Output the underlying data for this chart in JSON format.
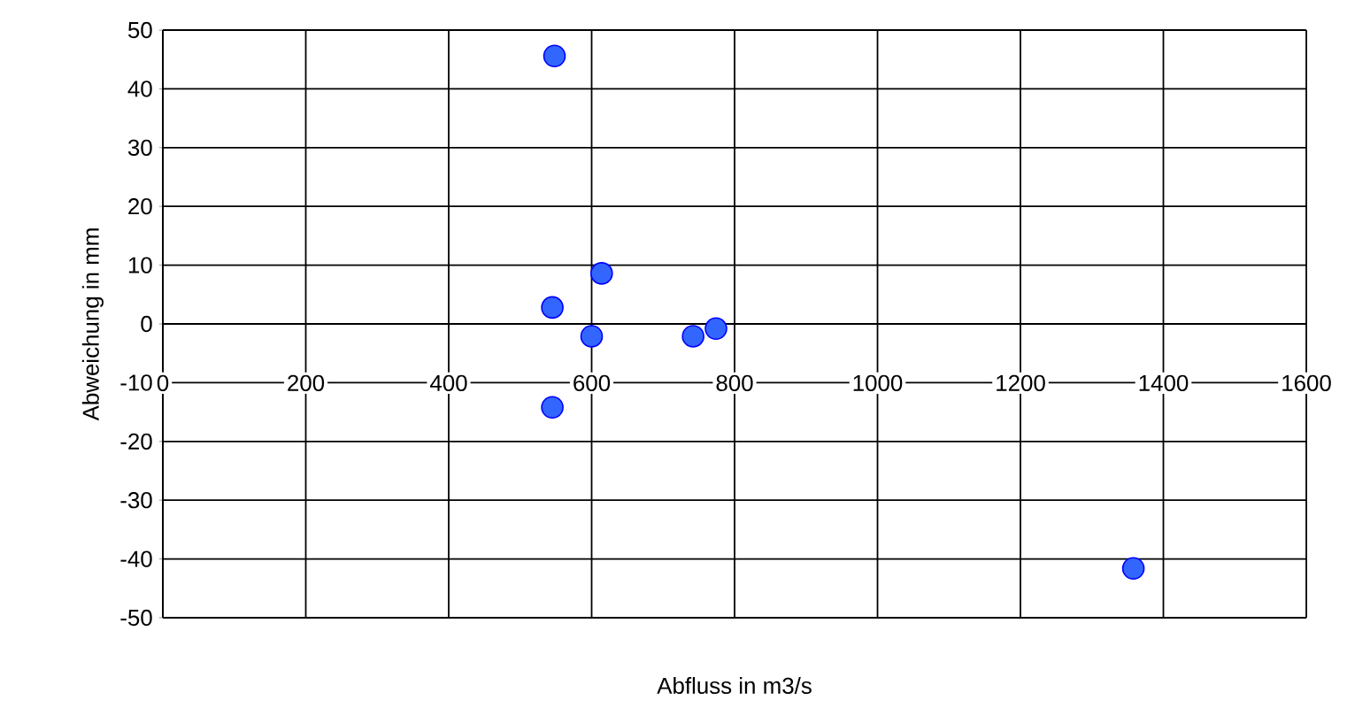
{
  "chart_data": {
    "type": "scatter",
    "xlabel": "Abfluss in m3/s",
    "ylabel": "Abweichung in mm",
    "x": [
      548,
      614,
      545,
      600,
      742,
      774,
      545,
      1358
    ],
    "values": [
      45.6,
      8.6,
      2.8,
      -2.1,
      -2.1,
      -0.8,
      -14.2,
      -41.6
    ],
    "color": "#3366ff",
    "marker": "circle",
    "grid": true,
    "xlim": [
      0,
      1600
    ],
    "ylim": [
      -50,
      50
    ],
    "xticks": [
      0,
      200,
      400,
      600,
      800,
      1000,
      1200,
      1400,
      1600
    ],
    "yticks": [
      -50,
      -40,
      -30,
      -20,
      -10,
      0,
      10,
      20,
      30,
      40,
      50
    ]
  }
}
